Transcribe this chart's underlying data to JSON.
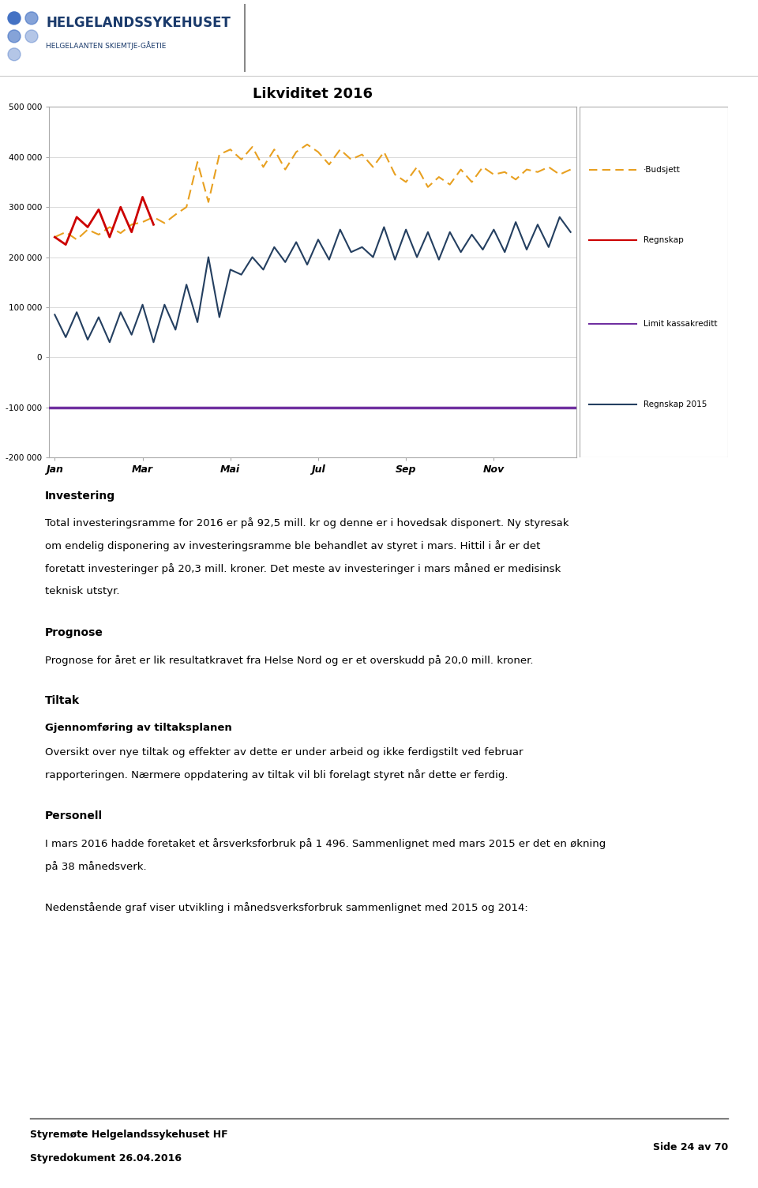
{
  "title": "Likviditet 2016",
  "chart_title_fontsize": 13,
  "ylim": [
    -200000,
    500000
  ],
  "yticks": [
    -200000,
    -100000,
    0,
    100000,
    200000,
    300000,
    400000,
    500000
  ],
  "ytick_labels": [
    "-200 000",
    "-100 000",
    "0",
    "100 000",
    "200 000",
    "300 000",
    "400 000",
    "500 000"
  ],
  "xtick_labels": [
    "Jan",
    "Mar",
    "Mai",
    "Jul",
    "Sep",
    "Nov"
  ],
  "xtick_positions": [
    0,
    8,
    16,
    24,
    32,
    40
  ],
  "budsjett_color": "#E8A020",
  "regnskap_color": "#CC0000",
  "limit_color": "#7030A0",
  "regnskap2015_color": "#243F60",
  "budsjett_x": [
    0,
    1,
    2,
    3,
    4,
    5,
    6,
    7,
    8,
    9,
    10,
    11,
    12,
    13,
    14,
    15,
    16,
    17,
    18,
    19,
    20,
    21,
    22,
    23,
    24,
    25,
    26,
    27,
    28,
    29,
    30,
    31,
    32,
    33,
    34,
    35,
    36,
    37,
    38,
    39,
    40,
    41,
    42,
    43,
    44,
    45,
    46,
    47
  ],
  "budsjett_y": [
    240000,
    250000,
    235000,
    255000,
    245000,
    260000,
    248000,
    265000,
    270000,
    280000,
    268000,
    285000,
    300000,
    390000,
    310000,
    405000,
    415000,
    395000,
    420000,
    380000,
    415000,
    375000,
    410000,
    425000,
    410000,
    385000,
    415000,
    395000,
    405000,
    380000,
    410000,
    365000,
    350000,
    380000,
    340000,
    360000,
    345000,
    375000,
    350000,
    380000,
    365000,
    370000,
    355000,
    375000,
    370000,
    380000,
    365000,
    375000
  ],
  "regnskap_x": [
    0,
    1,
    2,
    3,
    4,
    5,
    6,
    7,
    8,
    9
  ],
  "regnskap_y": [
    240000,
    225000,
    280000,
    260000,
    295000,
    240000,
    300000,
    250000,
    320000,
    265000
  ],
  "limit_y": -100000,
  "regnskap2015_x": [
    0,
    1,
    2,
    3,
    4,
    5,
    6,
    7,
    8,
    9,
    10,
    11,
    12,
    13,
    14,
    15,
    16,
    17,
    18,
    19,
    20,
    21,
    22,
    23,
    24,
    25,
    26,
    27,
    28,
    29,
    30,
    31,
    32,
    33,
    34,
    35,
    36,
    37,
    38,
    39,
    40,
    41,
    42,
    43,
    44,
    45,
    46,
    47
  ],
  "regnskap2015_y": [
    85000,
    40000,
    90000,
    35000,
    80000,
    30000,
    90000,
    45000,
    105000,
    30000,
    105000,
    55000,
    145000,
    70000,
    200000,
    80000,
    175000,
    165000,
    200000,
    175000,
    220000,
    190000,
    230000,
    185000,
    235000,
    195000,
    255000,
    210000,
    220000,
    200000,
    260000,
    195000,
    255000,
    200000,
    250000,
    195000,
    250000,
    210000,
    245000,
    215000,
    255000,
    210000,
    270000,
    215000,
    265000,
    220000,
    280000,
    250000
  ],
  "legend_labels": [
    "·Budsjett",
    "Regnskap",
    "Limit kassakreditt",
    "Regnskap 2015"
  ],
  "header_line1": "HELGELANDSSYKEHUSET",
  "header_line2": "HELGELAANTEN SKIEMTJE-GÅETIE",
  "section_investering_title": "Investering",
  "section_investering_text": "Total investeringsramme for 2016 er på 92,5 mill. kr og denne er i hovedsak disponert. Ny styresak om endelig disponering av investeringsramme ble behandlet av styret i mars. Hittil i år er det foretatt investeringer på 20,3 mill. kroner. Det meste av investeringer i mars måned er medisinsk teknisk utstyr.",
  "section_prognose_title": "Prognose",
  "section_prognose_text": "Prognose for året er lik resultatkravet fra Helse Nord og er et overskudd på 20,0 mill. kroner.",
  "section_tiltak_title": "Tiltak",
  "section_tiltak_subtitle": "Gjennomføring av tiltaksplanen",
  "section_tiltak_text": "Oversikt over nye tiltak og effekter av dette er under arbeid og ikke ferdigstilt ved februar rapporteringen. Nærmere oppdatering av tiltak vil bli forelagt styret når dette er ferdig.",
  "section_personell_title": "Personell",
  "section_personell_text": "I mars 2016 hadde foretaket et årsverksforbruk på 1 496. Sammenlignet med mars 2015 er det en økning på 38 månedsverk.",
  "section_nedenstaende_text": "Nedenstående graf viser utvikling i månedsverksforbruk sammenlignet med 2015 og 2014:",
  "footer_left_line1": "Styremøte Helgelandssykehuset HF",
  "footer_left_line2": "Styredokument 26.04.2016",
  "footer_right": "Side 24 av 70",
  "bg_color": "#ffffff",
  "chart_bg": "#ffffff",
  "border_color": "#888888"
}
